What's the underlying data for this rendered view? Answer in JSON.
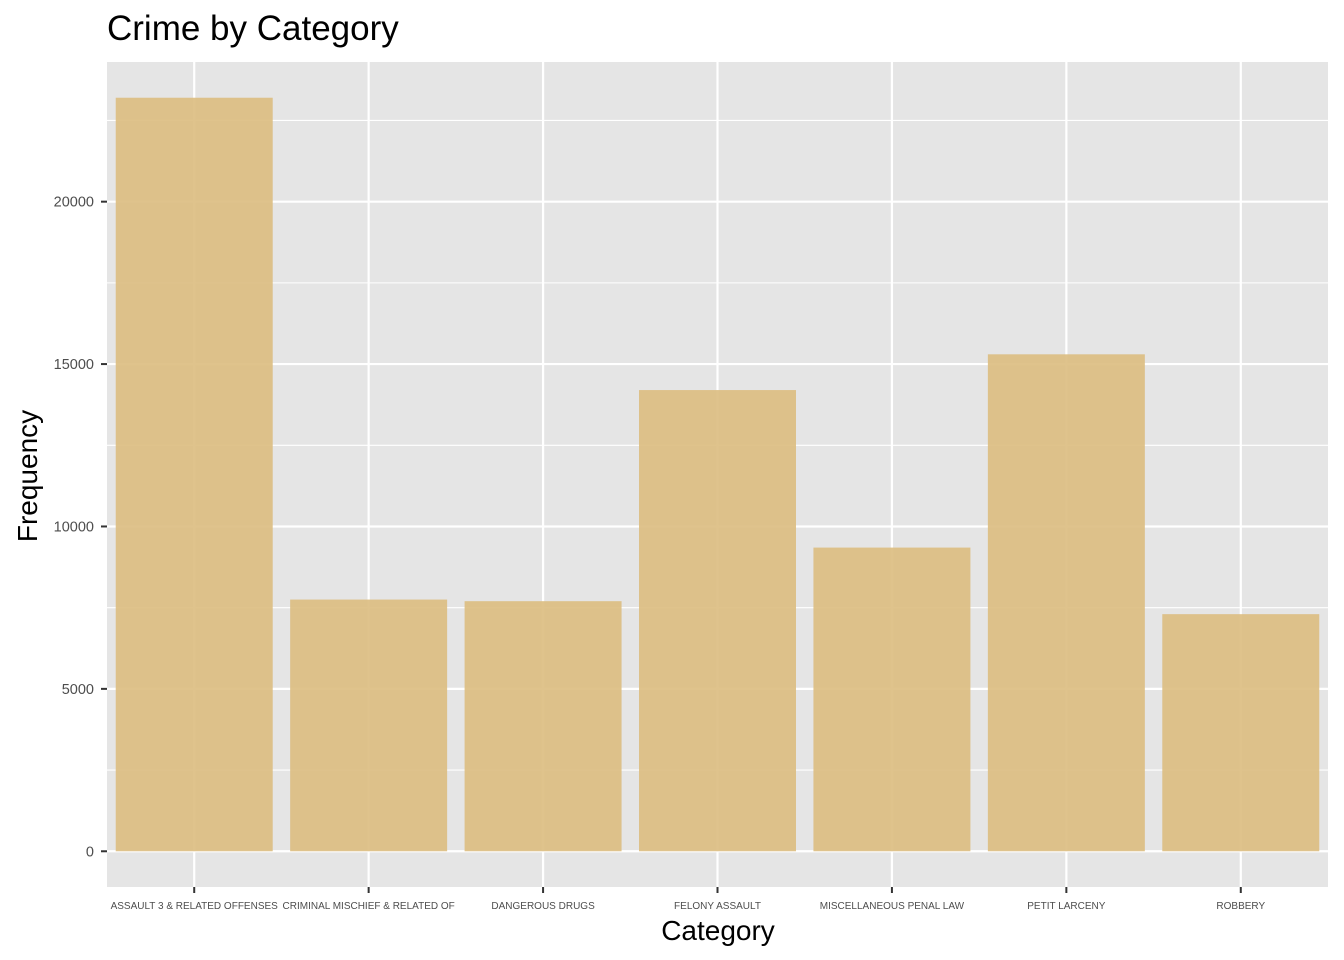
{
  "chart_data": {
    "type": "bar",
    "title": "Crime by Category",
    "xlabel": "Category",
    "ylabel": "Frequency",
    "categories": [
      "ASSAULT 3 & RELATED OFFENSES",
      "CRIMINAL MISCHIEF & RELATED OF",
      "DANGEROUS DRUGS",
      "FELONY ASSAULT",
      "MISCELLANEOUS PENAL LAW",
      "PETIT LARCENY",
      "ROBBERY"
    ],
    "values": [
      23200,
      7750,
      7700,
      14200,
      9350,
      15300,
      7300
    ],
    "ylim": [
      -1100,
      24300
    ],
    "y_ticks": [
      0,
      5000,
      10000,
      15000,
      20000
    ],
    "y_tick_labels": [
      "0",
      "5000",
      "10000",
      "15000",
      "20000"
    ],
    "grid": true,
    "legend": "none",
    "colors": {
      "bar_fill": "#ddbe83",
      "panel_background": "#e5e5e5",
      "grid_line": "#ffffff",
      "tick_mark": "#333333",
      "tick_label": "#4d4d4d"
    }
  }
}
